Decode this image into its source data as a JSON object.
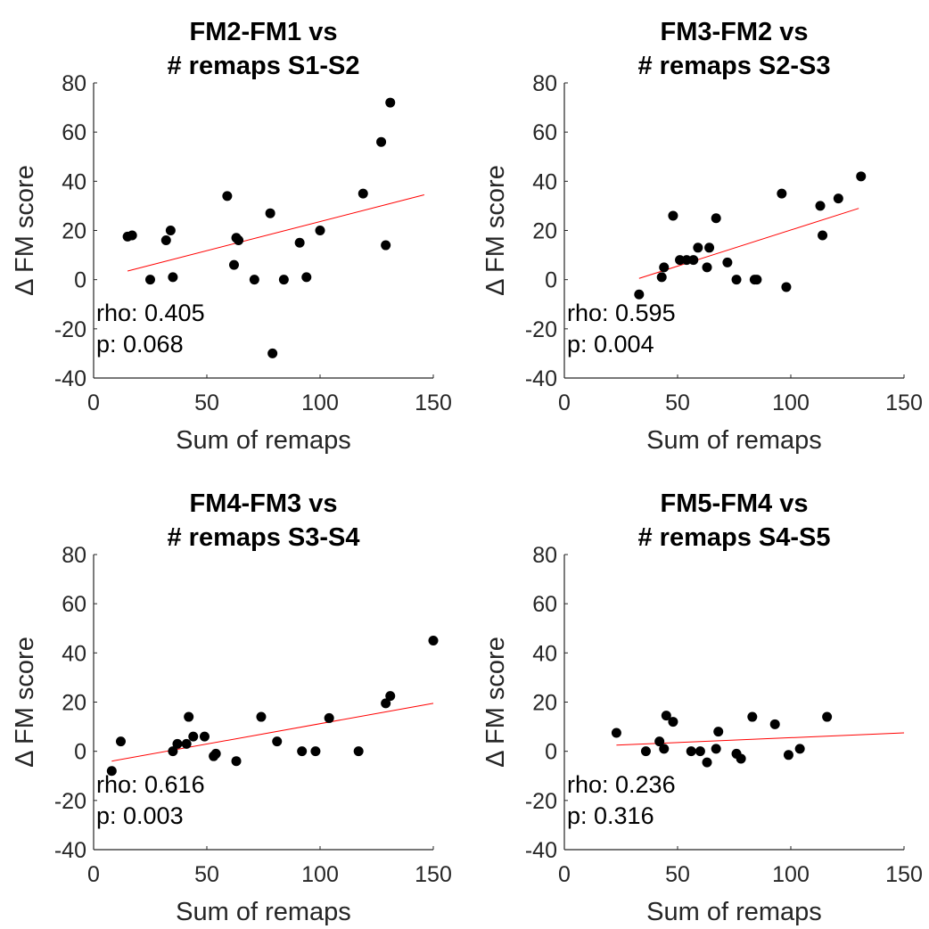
{
  "chart_data": [
    {
      "type": "scatter",
      "title_lines": [
        "FM2-FM1 vs",
        "# remaps S1-S2"
      ],
      "xlabel": "Sum of remaps",
      "ylabel": "Δ FM score",
      "xlim": [
        0,
        150
      ],
      "ylim": [
        -40,
        80
      ],
      "xticks": [
        0,
        50,
        100,
        150
      ],
      "yticks": [
        -40,
        -20,
        0,
        20,
        40,
        60,
        80
      ],
      "grid": false,
      "points": [
        [
          15,
          17.5
        ],
        [
          17,
          18
        ],
        [
          25,
          0
        ],
        [
          32,
          16
        ],
        [
          34,
          20
        ],
        [
          35,
          1
        ],
        [
          59,
          34
        ],
        [
          62,
          6
        ],
        [
          63,
          17
        ],
        [
          64,
          16
        ],
        [
          71,
          0
        ],
        [
          78,
          27
        ],
        [
          79,
          -30
        ],
        [
          84,
          0
        ],
        [
          91,
          15
        ],
        [
          94,
          1
        ],
        [
          100,
          20
        ],
        [
          119,
          35
        ],
        [
          127,
          56
        ],
        [
          129,
          14
        ],
        [
          131,
          72
        ]
      ],
      "fit_line": {
        "x": [
          15,
          146
        ],
        "y": [
          3.5,
          34.5
        ],
        "color": "#ff0000"
      },
      "annotations": [
        "rho: 0.405",
        "p: 0.068"
      ],
      "point_color": "#000000"
    },
    {
      "type": "scatter",
      "title_lines": [
        "FM3-FM2 vs",
        "# remaps S2-S3"
      ],
      "xlabel": "Sum of remaps",
      "ylabel": "Δ FM score",
      "xlim": [
        0,
        150
      ],
      "ylim": [
        -40,
        80
      ],
      "xticks": [
        0,
        50,
        100,
        150
      ],
      "yticks": [
        -40,
        -20,
        0,
        20,
        40,
        60,
        80
      ],
      "grid": false,
      "points": [
        [
          33,
          -6
        ],
        [
          43,
          1
        ],
        [
          44,
          5
        ],
        [
          48,
          26
        ],
        [
          51,
          8
        ],
        [
          54,
          8
        ],
        [
          57,
          8
        ],
        [
          59,
          13
        ],
        [
          63,
          5
        ],
        [
          64,
          13
        ],
        [
          67,
          25
        ],
        [
          72,
          7
        ],
        [
          76,
          0
        ],
        [
          84,
          0
        ],
        [
          85,
          0
        ],
        [
          96,
          35
        ],
        [
          98,
          -3
        ],
        [
          113,
          30
        ],
        [
          114,
          18
        ],
        [
          121,
          33
        ],
        [
          131,
          42
        ]
      ],
      "fit_line": {
        "x": [
          33,
          130
        ],
        "y": [
          0.5,
          29
        ],
        "color": "#ff0000"
      },
      "annotations": [
        "rho: 0.595",
        "p: 0.004"
      ],
      "point_color": "#000000"
    },
    {
      "type": "scatter",
      "title_lines": [
        "FM4-FM3 vs",
        "# remaps S3-S4"
      ],
      "xlabel": "Sum of remaps",
      "ylabel": "Δ FM score",
      "xlim": [
        0,
        150
      ],
      "ylim": [
        -40,
        80
      ],
      "xticks": [
        0,
        50,
        100,
        150
      ],
      "yticks": [
        -40,
        -20,
        0,
        20,
        40,
        60,
        80
      ],
      "grid": false,
      "points": [
        [
          8,
          -8
        ],
        [
          12,
          4
        ],
        [
          35,
          0
        ],
        [
          37,
          3
        ],
        [
          41,
          3
        ],
        [
          42,
          14
        ],
        [
          44,
          6
        ],
        [
          49,
          6
        ],
        [
          53,
          -2
        ],
        [
          54,
          -1
        ],
        [
          63,
          -4
        ],
        [
          74,
          14
        ],
        [
          81,
          4
        ],
        [
          92,
          0
        ],
        [
          98,
          0
        ],
        [
          104,
          13.5
        ],
        [
          117,
          0
        ],
        [
          129,
          19.5
        ],
        [
          131,
          22.5
        ],
        [
          150,
          45
        ]
      ],
      "fit_line": {
        "x": [
          8,
          150
        ],
        "y": [
          -4,
          19.5
        ],
        "color": "#ff0000"
      },
      "annotations": [
        "rho: 0.616",
        "p: 0.003"
      ],
      "point_color": "#000000"
    },
    {
      "type": "scatter",
      "title_lines": [
        "FM5-FM4 vs",
        "# remaps S4-S5"
      ],
      "xlabel": "Sum of remaps",
      "ylabel": "Δ FM score",
      "xlim": [
        0,
        150
      ],
      "ylim": [
        -40,
        80
      ],
      "xticks": [
        0,
        50,
        100,
        150
      ],
      "yticks": [
        -40,
        -20,
        0,
        20,
        40,
        60,
        80
      ],
      "grid": false,
      "points": [
        [
          23,
          7.5
        ],
        [
          36,
          0
        ],
        [
          42,
          4
        ],
        [
          44,
          1
        ],
        [
          45,
          14.5
        ],
        [
          48,
          12
        ],
        [
          56,
          0
        ],
        [
          60,
          0
        ],
        [
          63,
          -4.5
        ],
        [
          67,
          1
        ],
        [
          68,
          8
        ],
        [
          76,
          -1
        ],
        [
          78,
          -3
        ],
        [
          83,
          14
        ],
        [
          93,
          11
        ],
        [
          99,
          -1.5
        ],
        [
          104,
          1
        ],
        [
          116,
          14
        ]
      ],
      "fit_line": {
        "x": [
          23,
          150
        ],
        "y": [
          2.5,
          7.5
        ],
        "color": "#ff0000"
      },
      "annotations": [
        "rho: 0.236",
        "p: 0.316"
      ],
      "point_color": "#000000"
    }
  ]
}
